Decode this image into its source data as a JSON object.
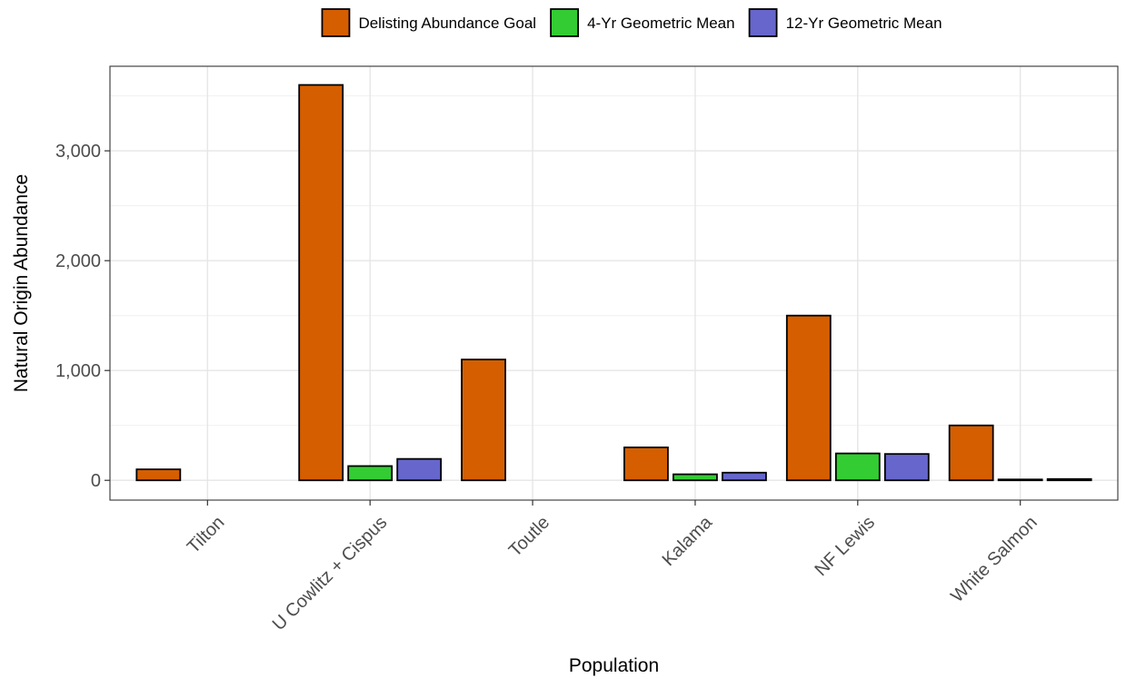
{
  "chart_data": {
    "type": "bar",
    "xlabel": "Population",
    "ylabel": "Natural Origin Abundance",
    "ylim": [
      -180,
      3770
    ],
    "yticks": [
      0,
      1000,
      2000,
      3000
    ],
    "ytick_labels": [
      "0",
      "1,000",
      "2,000",
      "3,000"
    ],
    "grid": true,
    "legend_position": "top",
    "categories": [
      "Tilton",
      "U Cowlitz + Cispus",
      "Toutle",
      "Kalama",
      "NF Lewis",
      "White Salmon"
    ],
    "series": [
      {
        "name": "Delisting Abundance Goal",
        "color": "#D55E00",
        "values": [
          100,
          3600,
          1100,
          300,
          1500,
          500
        ]
      },
      {
        "name": "4-Yr Geometric Mean",
        "color": "#33CC33",
        "values": [
          null,
          130,
          null,
          55,
          245,
          8
        ]
      },
      {
        "name": "12-Yr Geometric Mean",
        "color": "#6666CC",
        "values": [
          null,
          195,
          null,
          70,
          240,
          12
        ]
      }
    ]
  }
}
